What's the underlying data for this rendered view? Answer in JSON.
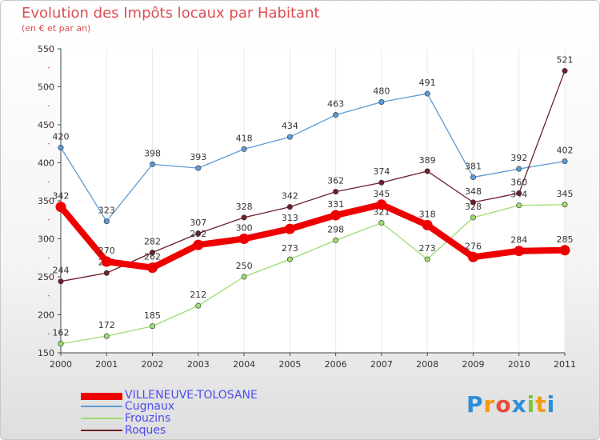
{
  "chart_data": {
    "type": "line",
    "title": "Evolution des Impôts locaux par Habitant",
    "subtitle": "(en € et par an)",
    "xlabel": "",
    "ylabel": "",
    "x": [
      "2000",
      "2001",
      "2002",
      "2003",
      "2004",
      "2005",
      "2006",
      "2007",
      "2008",
      "2009",
      "2010",
      "2011"
    ],
    "ylim": [
      150,
      550
    ],
    "yticks": [
      150,
      200,
      250,
      300,
      350,
      400,
      450,
      500,
      550
    ],
    "grid": "vertical",
    "series": [
      {
        "name": "Cugnaux",
        "color": "#5b9bd5",
        "values": [
          420,
          323,
          398,
          393,
          418,
          434,
          463,
          480,
          491,
          381,
          392,
          402
        ]
      },
      {
        "name": "Frouzins",
        "color": "#9ddc6e",
        "values": [
          162,
          172,
          185,
          212,
          250,
          273,
          298,
          321,
          273,
          328,
          344,
          345
        ]
      },
      {
        "name": "Roques",
        "color": "#6e1f2b",
        "values": [
          244,
          255,
          282,
          307,
          328,
          342,
          362,
          374,
          389,
          348,
          360,
          521
        ]
      },
      {
        "name": "VILLENEUVE-TOLOSANE",
        "color": "#ee0000",
        "values": [
          342,
          270,
          262,
          292,
          300,
          313,
          331,
          345,
          318,
          276,
          284,
          285
        ]
      }
    ]
  },
  "legend": [
    {
      "label": "VILLENEUVE-TOLOSANE",
      "color": "#ee0000",
      "text_color": "#4c4cf0"
    },
    {
      "label": "Cugnaux",
      "color": "#5b9bd5",
      "text_color": "#4c4cf0"
    },
    {
      "label": "Frouzins",
      "color": "#9ddc6e",
      "text_color": "#4c4cf0"
    },
    {
      "label": "Roques",
      "color": "#6e1f2b",
      "text_color": "#4c4cf0"
    }
  ],
  "brand": {
    "letters": [
      "P",
      "r",
      "o",
      "x",
      "i",
      "t",
      "i"
    ],
    "colors": [
      "#2e8fd6",
      "#f39c12",
      "#e74c3c",
      "#2e8fd6",
      "#7dc242",
      "#f39c12",
      "#2e8fd6"
    ]
  }
}
